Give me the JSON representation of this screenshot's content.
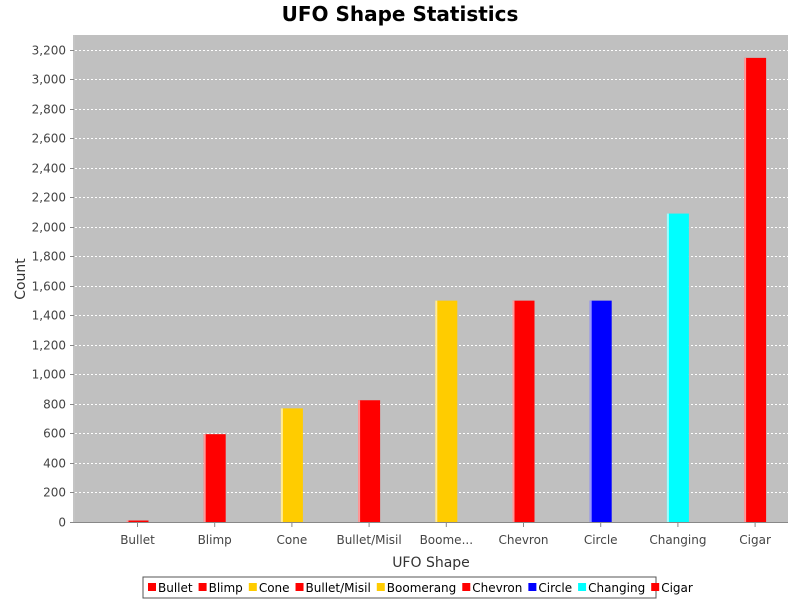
{
  "chart_data": {
    "type": "bar",
    "title": "UFO Shape Statistics",
    "xlabel": "UFO Shape",
    "ylabel": "Count",
    "ylim": [
      0,
      3300
    ],
    "yticks": [
      0,
      200,
      400,
      600,
      800,
      1000,
      1200,
      1400,
      1600,
      1800,
      2000,
      2200,
      2400,
      2600,
      2800,
      3000,
      3200
    ],
    "ytick_labels": [
      "0",
      "200",
      "400",
      "600",
      "800",
      "1,000",
      "1,200",
      "1,400",
      "1,600",
      "1,800",
      "2,000",
      "2,200",
      "2,400",
      "2,600",
      "2,800",
      "3,000",
      "3,200"
    ],
    "grid": true,
    "legend_placement": "bottom",
    "categories": [
      "Bullet",
      "Blimp",
      "Cone",
      "Bullet/Misil",
      "Boome...",
      "Chevron",
      "Circle",
      "Changing",
      "Cigar"
    ],
    "legend_labels": [
      "Bullet",
      "Blimp",
      "Cone",
      "Bullet/Misil",
      "Boomerang",
      "Chevron",
      "Circle",
      "Changing",
      "Cigar"
    ],
    "values": [
      10,
      595,
      770,
      825,
      1500,
      1500,
      1500,
      2090,
      3145
    ],
    "colors": [
      "#ff0000",
      "#ff0000",
      "#ffcc00",
      "#ff0000",
      "#ffcc00",
      "#ff0000",
      "#0000ff",
      "#00ffff",
      "#ff0000"
    ]
  }
}
